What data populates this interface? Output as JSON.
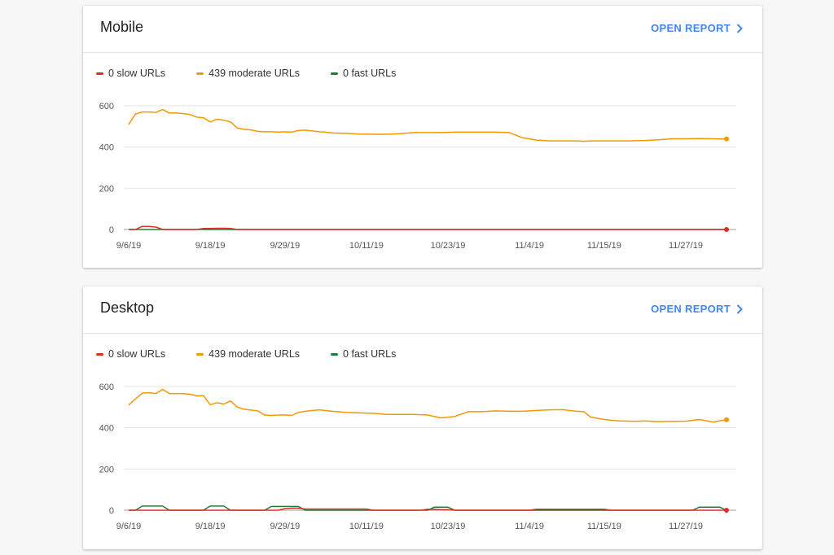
{
  "colors": {
    "slow": "#d93025",
    "moderate": "#f29900",
    "fast": "#188038",
    "link": "#4285f4"
  },
  "open_report_label": "OPEN REPORT",
  "chart_data": [
    {
      "type": "line",
      "title": "Mobile",
      "xlabel": "",
      "ylabel": "",
      "ylim": [
        0,
        600
      ],
      "yticks": [
        0,
        200,
        400,
        600
      ],
      "xticks": [
        "9/6/19",
        "9/18/19",
        "9/29/19",
        "10/11/19",
        "10/23/19",
        "11/4/19",
        "11/15/19",
        "11/27/19"
      ],
      "xtick_days": [
        0,
        12,
        23,
        35,
        47,
        59,
        70,
        82
      ],
      "legend": "top-left",
      "grid": true,
      "legend_entries": [
        "0 slow URLs",
        "439 moderate URLs",
        "0 fast URLs"
      ],
      "series": [
        {
          "name": "0 slow URLs",
          "color": "slow",
          "x": [
            0,
            1,
            2,
            3,
            4,
            5,
            10,
            11,
            12,
            13,
            14,
            15,
            16,
            88
          ],
          "y": [
            0,
            0,
            15,
            15,
            12,
            0,
            0,
            5,
            5,
            6,
            6,
            5,
            0,
            0
          ]
        },
        {
          "name": "439 moderate URLs",
          "color": "moderate",
          "x": [
            0,
            1,
            2,
            3,
            4,
            5,
            6,
            7,
            8,
            9,
            10,
            11,
            12,
            13,
            14,
            15,
            16,
            17,
            18,
            19,
            20,
            21,
            22,
            23,
            24,
            25,
            26,
            27,
            28,
            29,
            30,
            32,
            34,
            36,
            38,
            40,
            42,
            44,
            46,
            48,
            50,
            52,
            54,
            56,
            58,
            60,
            62,
            64,
            65,
            66,
            67,
            68,
            70,
            72,
            74,
            75,
            76,
            78,
            80,
            82,
            84,
            86,
            88
          ],
          "y": [
            510,
            560,
            570,
            570,
            568,
            582,
            565,
            565,
            562,
            558,
            545,
            542,
            522,
            535,
            530,
            522,
            492,
            486,
            483,
            476,
            474,
            474,
            472,
            474,
            472,
            480,
            482,
            478,
            474,
            472,
            468,
            466,
            463,
            462,
            462,
            465,
            470,
            470,
            470,
            472,
            472,
            472,
            472,
            470,
            445,
            434,
            430,
            430,
            430,
            430,
            428,
            430,
            430,
            430,
            430,
            431,
            432,
            435,
            440,
            440,
            441,
            440,
            439
          ]
        },
        {
          "name": "0 fast URLs",
          "color": "fast",
          "x": [
            0,
            88
          ],
          "y": [
            0,
            0
          ]
        }
      ]
    },
    {
      "type": "line",
      "title": "Desktop",
      "xlabel": "",
      "ylabel": "",
      "ylim": [
        0,
        600
      ],
      "yticks": [
        0,
        200,
        400,
        600
      ],
      "xticks": [
        "9/6/19",
        "9/18/19",
        "9/29/19",
        "10/11/19",
        "10/23/19",
        "11/4/19",
        "11/15/19",
        "11/27/19"
      ],
      "xtick_days": [
        0,
        12,
        23,
        35,
        47,
        59,
        70,
        82
      ],
      "legend": "top-left",
      "grid": true,
      "legend_entries": [
        "0 slow URLs",
        "439 moderate URLs",
        "0 fast URLs"
      ],
      "series": [
        {
          "name": "0 slow URLs",
          "color": "slow",
          "x": [
            0,
            22,
            23,
            24,
            25,
            26,
            35,
            36,
            43,
            44,
            45,
            46,
            47,
            48,
            59,
            60,
            70,
            71,
            80,
            81,
            88
          ],
          "y": [
            0,
            0,
            8,
            10,
            10,
            6,
            6,
            0,
            0,
            5,
            5,
            3,
            3,
            0,
            0,
            5,
            5,
            0,
            0,
            0,
            0
          ]
        },
        {
          "name": "439 moderate URLs",
          "color": "moderate",
          "x": [
            0,
            1,
            2,
            3,
            4,
            5,
            6,
            7,
            8,
            9,
            10,
            11,
            12,
            13,
            14,
            15,
            16,
            17,
            18,
            19,
            20,
            21,
            22,
            23,
            24,
            25,
            26,
            28,
            30,
            32,
            34,
            36,
            38,
            40,
            42,
            44,
            46,
            48,
            50,
            52,
            54,
            56,
            58,
            60,
            62,
            64,
            65,
            66,
            67,
            68,
            70,
            72,
            74,
            75,
            76,
            78,
            80,
            82,
            84,
            86,
            88
          ],
          "y": [
            510,
            540,
            568,
            570,
            566,
            586,
            566,
            566,
            566,
            563,
            555,
            556,
            512,
            522,
            515,
            530,
            500,
            490,
            486,
            482,
            462,
            460,
            462,
            462,
            460,
            475,
            480,
            487,
            480,
            475,
            472,
            470,
            465,
            465,
            465,
            462,
            448,
            455,
            478,
            478,
            482,
            480,
            480,
            484,
            487,
            488,
            483,
            480,
            478,
            452,
            440,
            434,
            432,
            432,
            433,
            430,
            431,
            432,
            440,
            428,
            439
          ]
        },
        {
          "name": "0 fast URLs",
          "color": "fast",
          "x": [
            0,
            1,
            2,
            3,
            4,
            5,
            6,
            10,
            11,
            12,
            13,
            14,
            15,
            16,
            19,
            20,
            21,
            22,
            23,
            24,
            25,
            26,
            43,
            44,
            45,
            46,
            47,
            48,
            83,
            84,
            85,
            86,
            87,
            88
          ],
          "y": [
            0,
            0,
            20,
            20,
            20,
            20,
            0,
            0,
            0,
            20,
            20,
            20,
            0,
            0,
            0,
            0,
            18,
            18,
            18,
            18,
            18,
            0,
            0,
            0,
            15,
            15,
            15,
            0,
            0,
            15,
            15,
            15,
            15,
            0
          ]
        }
      ]
    }
  ]
}
